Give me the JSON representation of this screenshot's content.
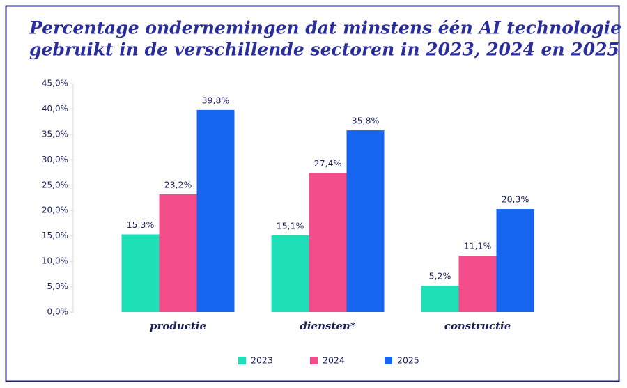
{
  "chart_data": {
    "type": "bar",
    "title": [
      "Percentage ondernemingen dat minstens één AI technologie",
      "gebruikt in de verschillende sectoren in 2023, 2024 en 2025"
    ],
    "categories": [
      "productie",
      "diensten*",
      "constructie"
    ],
    "series": [
      {
        "name": "2023",
        "color": "#1de0b8",
        "values": [
          15.3,
          15.1,
          5.2
        ],
        "value_labels": [
          "15,3%",
          "15,1%",
          "5,2%"
        ]
      },
      {
        "name": "2024",
        "color": "#f24d8a",
        "values": [
          23.2,
          27.4,
          11.1
        ],
        "value_labels": [
          "23,2%",
          "27,4%",
          "11,1%"
        ]
      },
      {
        "name": "2025",
        "color": "#1565f0",
        "values": [
          39.8,
          35.8,
          20.3
        ],
        "value_labels": [
          "39,8%",
          "35,8%",
          "20,3%"
        ]
      }
    ],
    "ylim": [
      0,
      45
    ],
    "yticks": [
      {
        "value": 0,
        "label": "0,0%"
      },
      {
        "value": 5,
        "label": "5,0%"
      },
      {
        "value": 10,
        "label": "10,0%"
      },
      {
        "value": 15,
        "label": "15,0%"
      },
      {
        "value": 20,
        "label": "20,0%"
      },
      {
        "value": 25,
        "label": "25,0%"
      },
      {
        "value": 30,
        "label": "30,0%"
      },
      {
        "value": 35,
        "label": "35,0%"
      },
      {
        "value": 40,
        "label": "40,0%"
      },
      {
        "value": 45,
        "label": "45,0%"
      }
    ],
    "grid": false
  }
}
